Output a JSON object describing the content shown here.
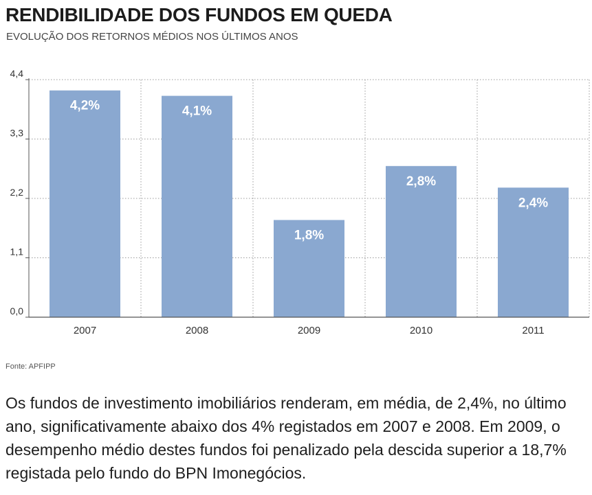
{
  "header": {
    "title": "RENDIBILIDADE DOS FUNDOS EM QUEDA",
    "subtitle": "EVOLUÇÃO DOS RETORNOS MÉDIOS NOS ÚLTIMOS ANOS"
  },
  "chart_data": {
    "type": "bar",
    "title": "RENDIBILIDADE DOS FUNDOS EM QUEDA",
    "subtitle": "EVOLUÇÃO DOS RETORNOS MÉDIOS NOS ÚLTIMOS ANOS",
    "categories": [
      "2007",
      "2008",
      "2009",
      "2010",
      "2011"
    ],
    "values": [
      4.2,
      4.1,
      1.8,
      2.8,
      2.4
    ],
    "data_labels": [
      "4,2%",
      "4,1%",
      "1,8%",
      "2,8%",
      "2,4%"
    ],
    "yticks": [
      0.0,
      1.1,
      2.2,
      3.3,
      4.4
    ],
    "ytick_labels": [
      "0,0",
      "1,1",
      "2,2",
      "3,3",
      "4,4"
    ],
    "ylim": [
      0,
      4.4
    ],
    "xlabel": "",
    "ylabel": "",
    "grid": "dotted vertical and horizontal",
    "bar_color": "#8aa8d0",
    "axis_color": "#555555"
  },
  "footer": {
    "source": "Fonte: APFIPP",
    "body": "Os fundos de investimento imobiliários renderam, em média, de 2,4%, no último ano, significativamente abaixo dos 4% registados em 2007 e 2008. Em 2009, o desempenho médio destes fundos foi penalizado pela descida superior a 18,7% registada pelo fundo do BPN Imonegócios."
  }
}
